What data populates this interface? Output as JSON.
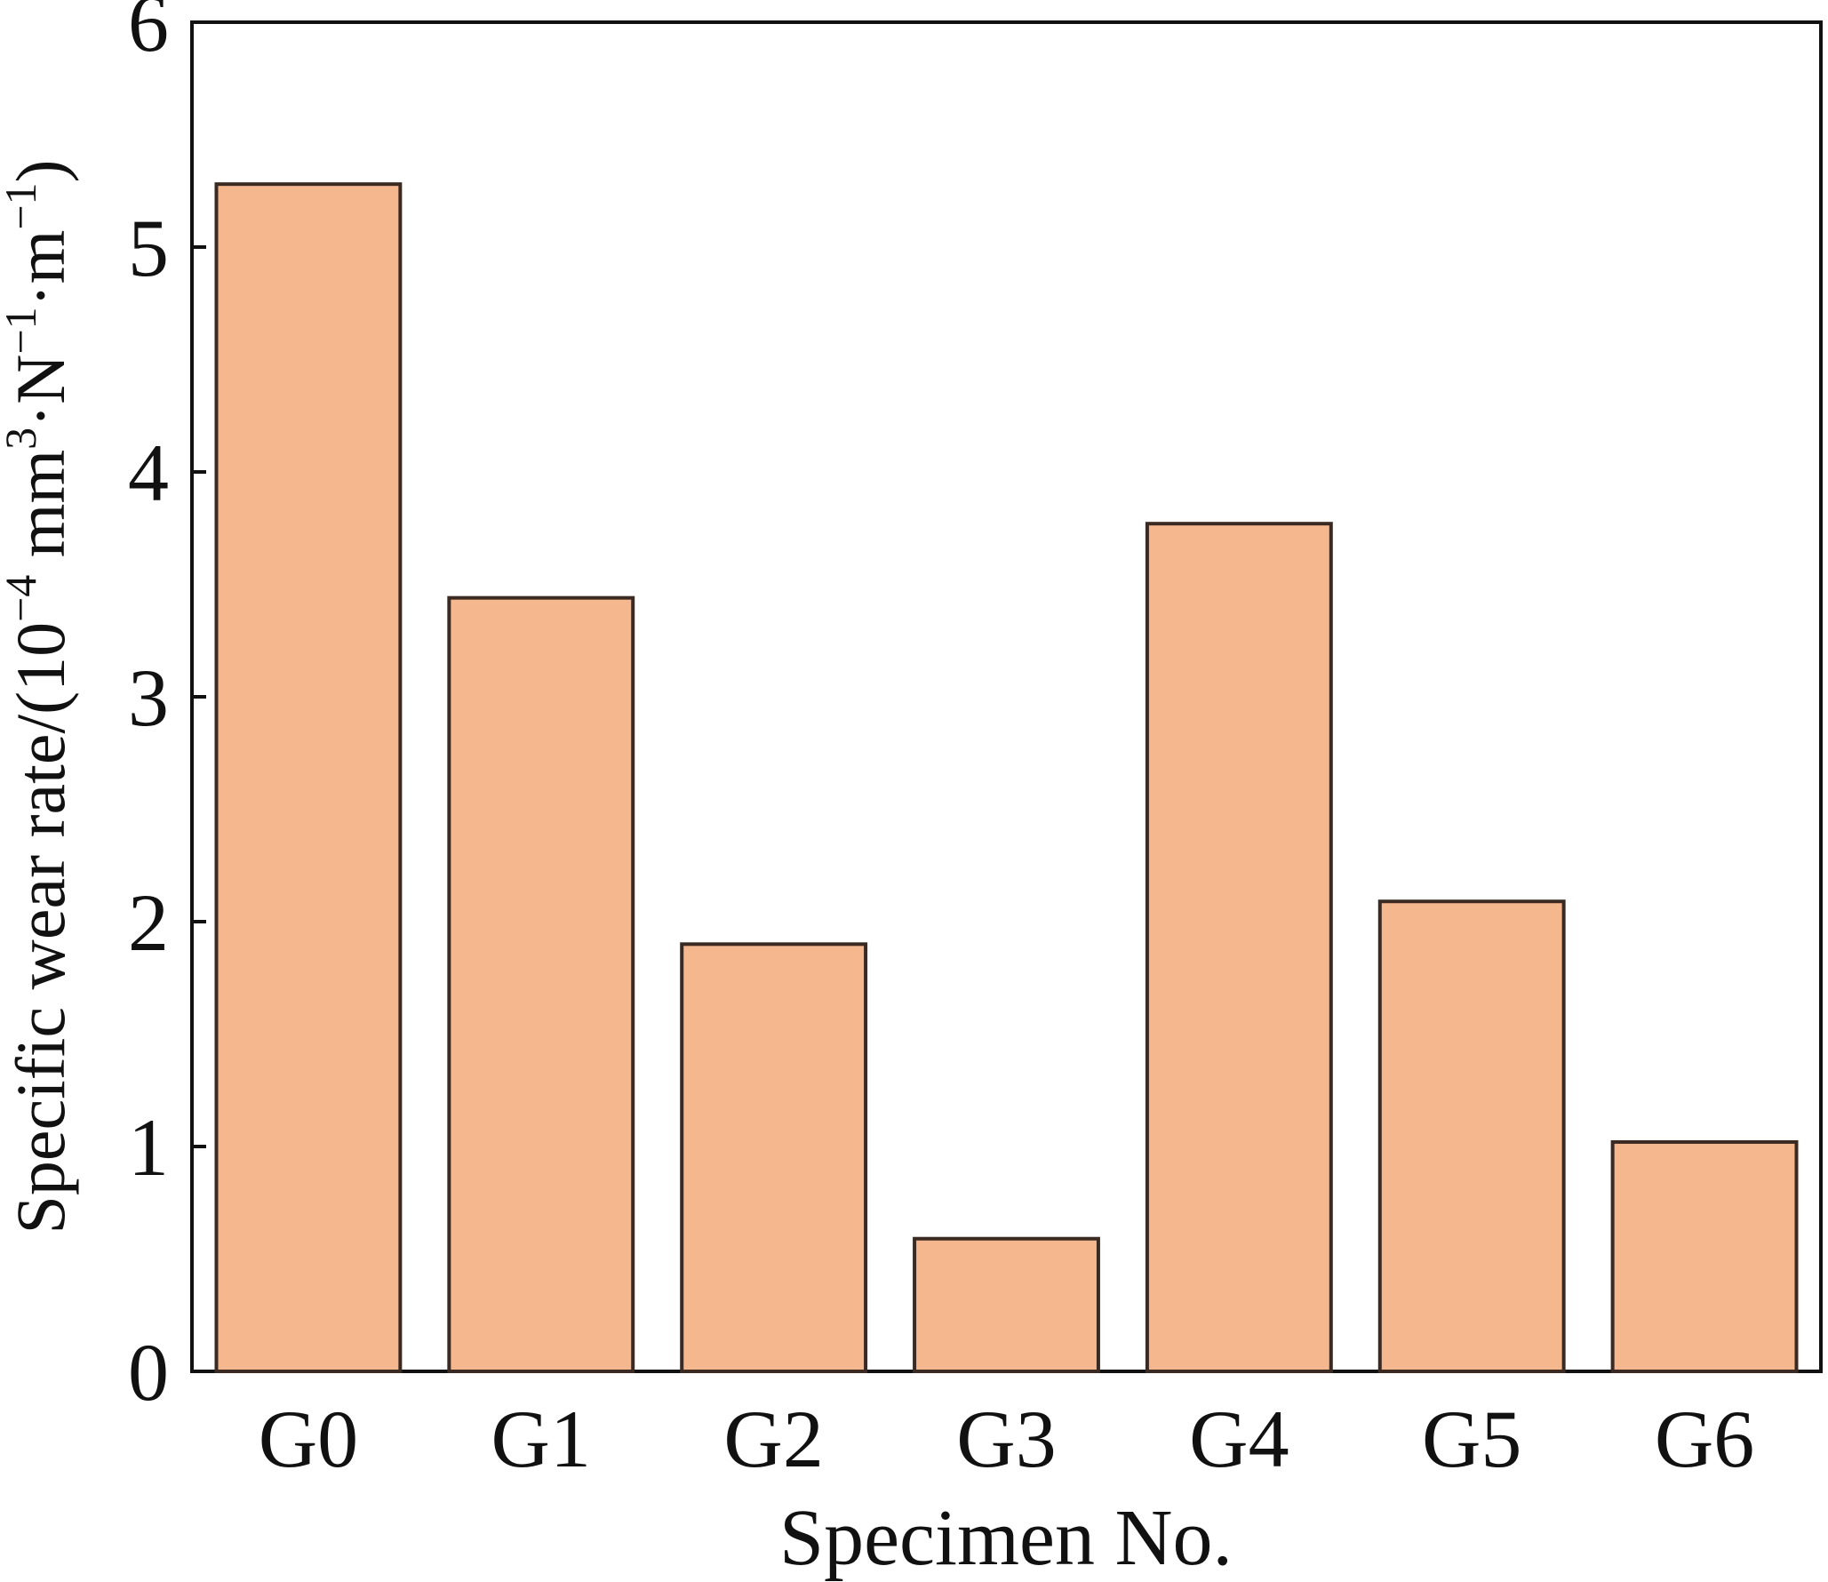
{
  "chart_data": {
    "type": "bar",
    "title": "",
    "xlabel": "Specimen No.",
    "ylabel": {
      "prefix": "Specific wear rate/(10",
      "exp1": "−4",
      "mid1": " mm",
      "exp2": "3",
      "mid2": "·N",
      "exp3": "−1",
      "mid3": "·m",
      "exp4": "−1",
      "suffix": ")"
    },
    "categories": [
      "G0",
      "G1",
      "G2",
      "G3",
      "G4",
      "G5",
      "G6"
    ],
    "values": [
      5.28,
      3.44,
      1.9,
      0.59,
      3.77,
      2.09,
      1.02
    ],
    "ylim": [
      0,
      6
    ],
    "yticks": [
      0,
      1,
      2,
      3,
      4,
      5,
      6
    ],
    "grid": false,
    "legend": "none",
    "colors": {
      "bar_fill": "#f5b78e",
      "bar_stroke": "#3a2a22",
      "axis": "#111111"
    }
  }
}
